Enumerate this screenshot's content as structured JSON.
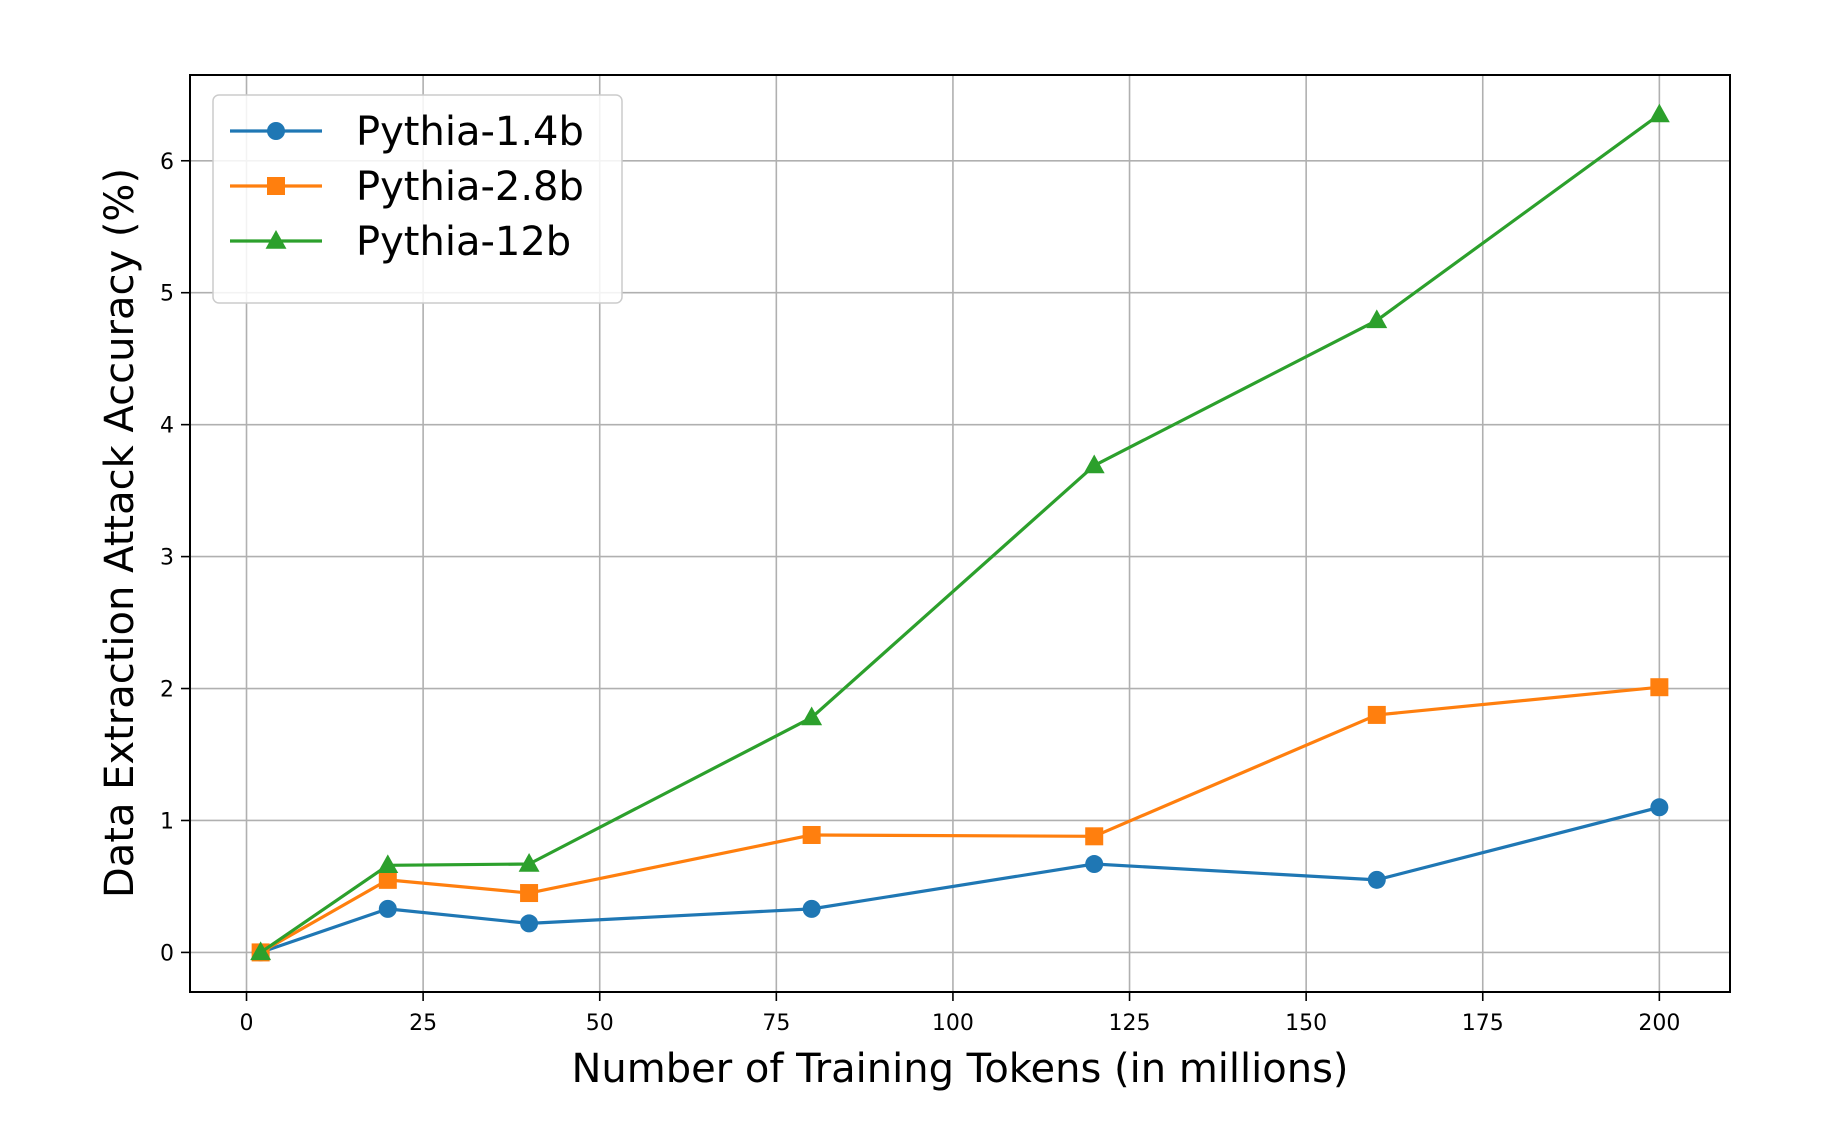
{
  "chart_data": {
    "type": "line",
    "title": "",
    "xlabel": "Number of Training Tokens (in millions)",
    "ylabel": "Data Extraction Attack Accuracy (%)",
    "xlim": [
      -8,
      210
    ],
    "ylim": [
      -0.3,
      6.65
    ],
    "xticks": [
      0,
      25,
      50,
      75,
      100,
      125,
      150,
      175,
      200
    ],
    "yticks": [
      0,
      1,
      2,
      3,
      4,
      5,
      6
    ],
    "grid": true,
    "legend_position": "top-left",
    "x": [
      2,
      20,
      40,
      80,
      120,
      160,
      200
    ],
    "series": [
      {
        "name": "Pythia-1.4b",
        "color": "#1f77b4",
        "marker": "circle",
        "values": [
          0,
          0.33,
          0.22,
          0.33,
          0.67,
          0.55,
          1.1
        ]
      },
      {
        "name": "Pythia-2.8b",
        "color": "#ff7f0e",
        "marker": "square",
        "values": [
          0,
          0.55,
          0.45,
          0.89,
          0.88,
          1.8,
          2.01
        ]
      },
      {
        "name": "Pythia-12b",
        "color": "#2ca02c",
        "marker": "triangle",
        "values": [
          0,
          0.66,
          0.67,
          1.78,
          3.69,
          4.79,
          6.35
        ]
      }
    ]
  }
}
